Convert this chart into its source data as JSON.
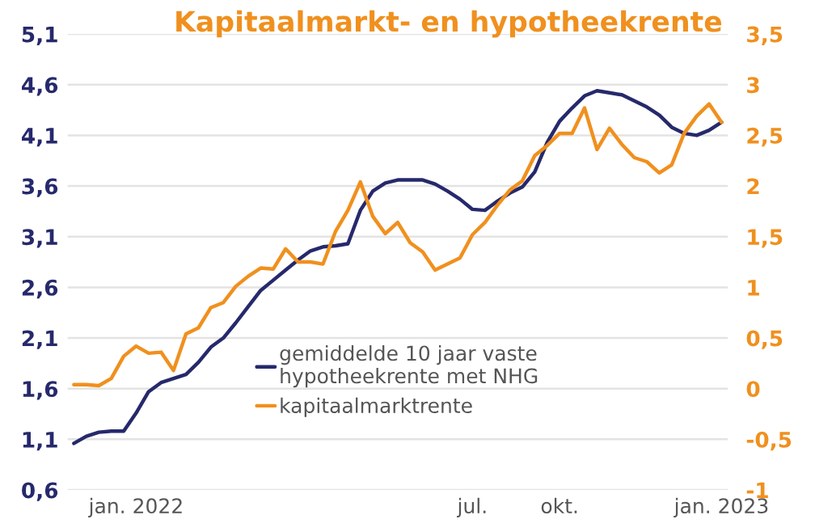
{
  "chart_data": {
    "type": "line",
    "title": "Kapitaalmarkt- en hypotheekrente",
    "categories": [
      null,
      null,
      null,
      null,
      null,
      "jan. 2022",
      null,
      null,
      null,
      null,
      null,
      null,
      null,
      null,
      null,
      null,
      null,
      null,
      null,
      null,
      null,
      null,
      null,
      null,
      null,
      null,
      null,
      null,
      null,
      null,
      null,
      null,
      "jul.",
      null,
      null,
      null,
      null,
      null,
      null,
      "okt.",
      null,
      null,
      null,
      null,
      null,
      null,
      null,
      null,
      null,
      null,
      null,
      null,
      "jan. 2023"
    ],
    "ylim": [
      0.6,
      5.1
    ],
    "yticks": [
      {
        "value": 0.6,
        "label": "0,6"
      },
      {
        "value": 1.1,
        "label": "1,1"
      },
      {
        "value": 1.6,
        "label": "1,6"
      },
      {
        "value": 2.1,
        "label": "2,1"
      },
      {
        "value": 2.6,
        "label": "2,6"
      },
      {
        "value": 3.1,
        "label": "3,1"
      },
      {
        "value": 3.6,
        "label": "3,6"
      },
      {
        "value": 4.1,
        "label": "4,1"
      },
      {
        "value": 4.6,
        "label": "4,6"
      },
      {
        "value": 5.1,
        "label": "5,1"
      }
    ],
    "y2lim": [
      -1,
      3.5
    ],
    "y2ticks": [
      {
        "value": -1,
        "label": "-1"
      },
      {
        "value": -0.5,
        "label": "-0,5"
      },
      0,
      {
        "value": 0.5,
        "label": "0,5"
      },
      1,
      {
        "value": 1.5,
        "label": "1,5"
      },
      2,
      {
        "value": 2.5,
        "label": "2,5"
      },
      3,
      {
        "value": 3.5,
        "label": "3,5"
      }
    ],
    "grid": "y",
    "legend": "bottom",
    "line_style": "solid",
    "marker": "none",
    "series": [
      {
        "name": "gemiddelde 10 jaar vaste\nhypotheekrente met NHG",
        "color": "#26296b",
        "values": [
          1.06,
          1.13,
          1.17,
          1.18,
          1.18,
          1.36,
          1.57,
          1.66,
          1.7,
          1.74,
          1.86,
          2.01,
          2.1,
          2.25,
          2.41,
          2.57,
          2.67,
          2.77,
          2.87,
          2.96,
          3.0,
          3.01,
          3.03,
          3.36,
          3.55,
          3.63,
          3.66,
          3.66,
          3.66,
          3.62,
          3.55,
          3.47,
          3.37,
          3.36,
          3.45,
          3.53,
          3.59,
          3.74,
          4.03,
          4.24,
          4.37,
          4.49,
          4.54,
          4.52,
          4.5,
          4.44,
          4.38,
          4.3,
          4.18,
          4.12,
          4.1,
          4.15,
          4.23
        ]
      },
      {
        "name": "kapitaalmarktrente",
        "axis": "y2",
        "color": "#f0901e",
        "values": [
          0.04,
          0.04,
          0.03,
          0.1,
          0.32,
          0.42,
          0.35,
          0.36,
          0.18,
          0.54,
          0.6,
          0.8,
          0.85,
          1.01,
          1.11,
          1.19,
          1.18,
          1.38,
          1.25,
          1.25,
          1.23,
          1.55,
          1.76,
          2.04,
          1.7,
          1.53,
          1.64,
          1.44,
          1.35,
          1.17,
          1.23,
          1.29,
          1.52,
          1.64,
          1.81,
          1.96,
          2.05,
          2.3,
          2.4,
          2.52,
          2.52,
          2.77,
          2.36,
          2.57,
          2.41,
          2.28,
          2.24,
          2.13,
          2.21,
          2.52,
          2.69,
          2.81,
          2.63
        ]
      }
    ]
  }
}
